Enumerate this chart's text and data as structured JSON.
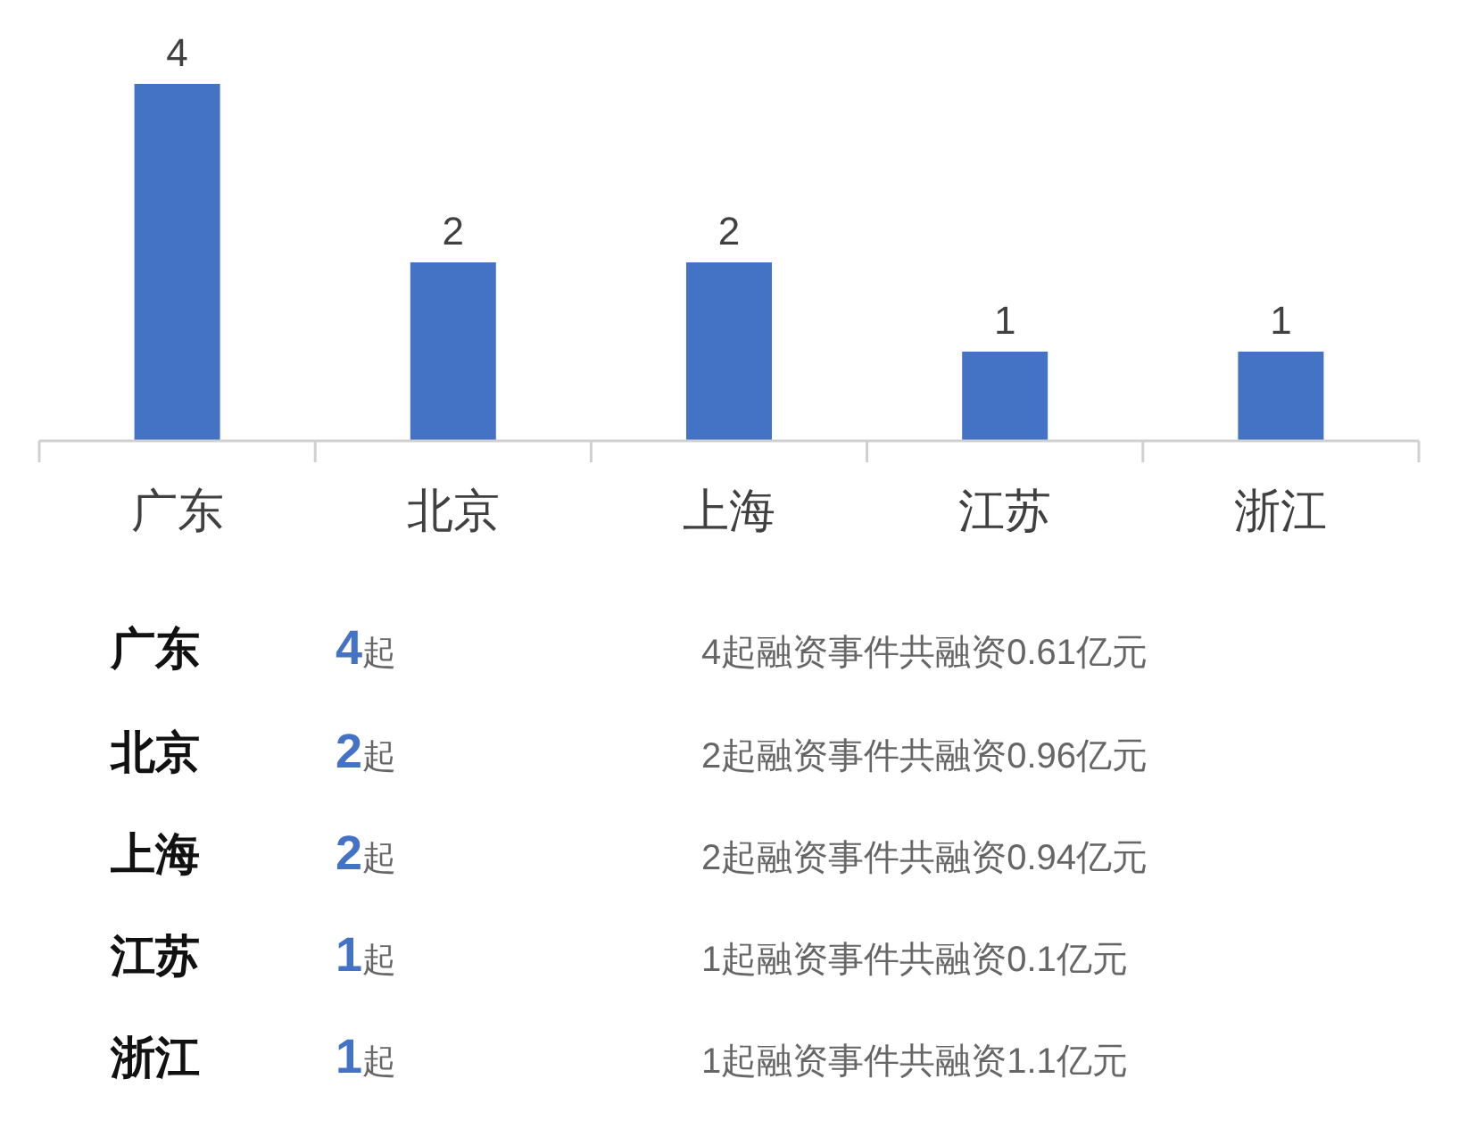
{
  "chart_data": {
    "type": "bar",
    "categories": [
      "广东",
      "北京",
      "上海",
      "江苏",
      "浙江"
    ],
    "values": [
      4,
      2,
      2,
      1,
      1
    ],
    "color": "#4472c4",
    "data_labels": true,
    "annotations": [
      "广东",
      "4起",
      "4起融资事件共融资0.61亿元",
      "北京",
      "2起",
      "2起融资事件共融资0.96亿元",
      "上海",
      "2起",
      "2起融资事件共融资0.94亿元",
      "江苏",
      "1起",
      "1起融资事件共融资0.1亿元",
      "浙江",
      "1起",
      "1起融资事件共融资1.1亿元"
    ]
  }
}
